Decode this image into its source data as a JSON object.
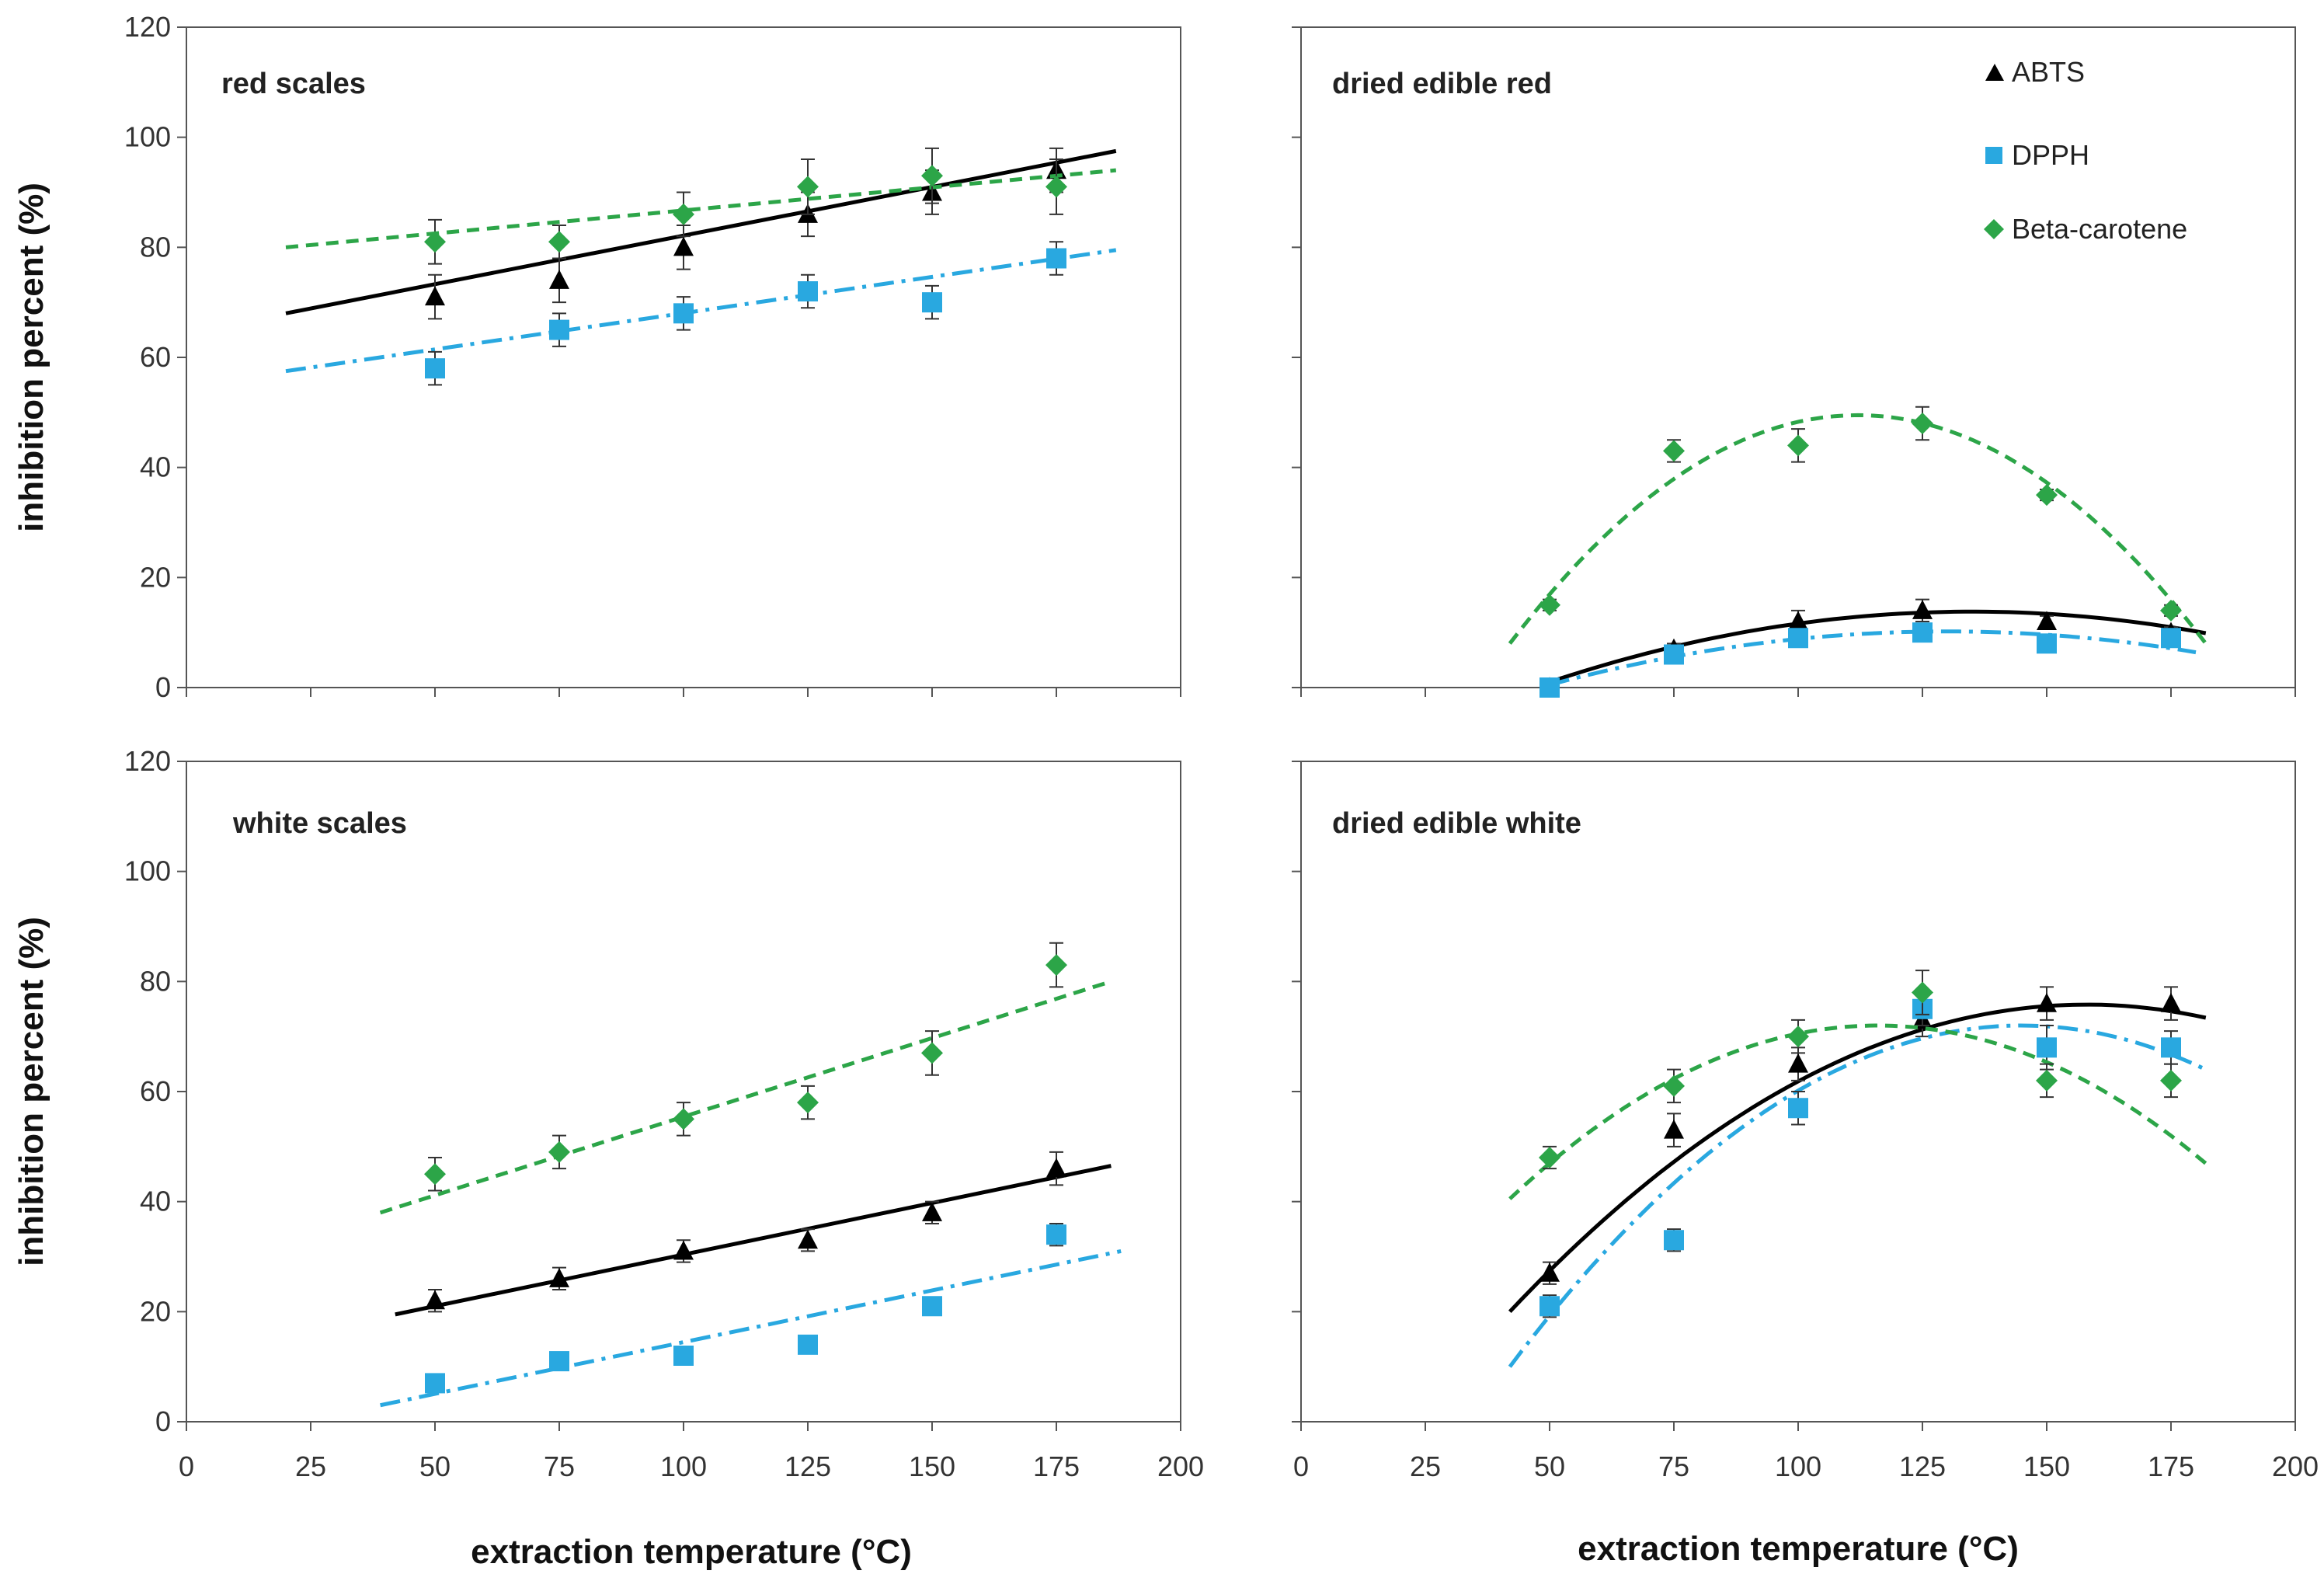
{
  "figure": {
    "ylabel": "inhibition percent (%)",
    "xlabel": "extraction temperature (°C)"
  },
  "legend": {
    "placement": "top-right of upper-right panel",
    "entries": [
      {
        "label": "ABTS",
        "marker": "triangle",
        "color": "#000000",
        "line": "solid"
      },
      {
        "label": "DPPH",
        "marker": "square",
        "color": "#29a8e0",
        "line": "dash-dot"
      },
      {
        "label": "Beta-carotene",
        "marker": "diamond",
        "color": "#2ca548",
        "line": "dashed"
      }
    ]
  },
  "chart_data": [
    {
      "type": "scatter",
      "title": "red scales",
      "xlim": [
        0,
        200
      ],
      "ylim": [
        0,
        120
      ],
      "xticks": [
        0,
        25,
        50,
        75,
        100,
        125,
        150,
        175,
        200
      ],
      "yticks": [
        0,
        20,
        40,
        60,
        80,
        100,
        120
      ],
      "show_y_labels": true,
      "show_x_labels": false,
      "series": [
        {
          "name": "ABTS",
          "x": [
            50,
            75,
            100,
            125,
            150,
            175
          ],
          "y": [
            71,
            74,
            80,
            86,
            90,
            94
          ],
          "err": [
            4,
            4,
            4,
            4,
            4,
            4
          ],
          "fit": {
            "x": [
              20,
              187
            ],
            "y": [
              68,
              97.5
            ],
            "kind": "linear"
          }
        },
        {
          "name": "DPPH",
          "x": [
            50,
            75,
            100,
            125,
            150,
            175
          ],
          "y": [
            58,
            65,
            68,
            72,
            70,
            78
          ],
          "err": [
            3,
            3,
            3,
            3,
            3,
            3
          ],
          "fit": {
            "x": [
              20,
              187
            ],
            "y": [
              57.5,
              79.5
            ],
            "kind": "linear"
          }
        },
        {
          "name": "Beta-carotene",
          "x": [
            50,
            75,
            100,
            125,
            150,
            175
          ],
          "y": [
            81,
            81,
            86,
            91,
            93,
            91
          ],
          "err": [
            4,
            3,
            4,
            5,
            5,
            5
          ],
          "fit": {
            "x": [
              20,
              187
            ],
            "y": [
              80,
              94
            ],
            "kind": "linear"
          }
        }
      ]
    },
    {
      "type": "scatter",
      "title": "dried edible red",
      "xlim": [
        0,
        200
      ],
      "ylim": [
        0,
        120
      ],
      "xticks": [
        0,
        25,
        50,
        75,
        100,
        125,
        150,
        175,
        200
      ],
      "yticks": [
        0,
        20,
        40,
        60,
        80,
        100,
        120
      ],
      "show_y_labels": false,
      "show_x_labels": false,
      "series": [
        {
          "name": "ABTS",
          "x": [
            50,
            75,
            100,
            125,
            150,
            175
          ],
          "y": [
            0,
            7,
            12,
            14,
            12,
            10
          ],
          "err": [
            0,
            1,
            2,
            2,
            1,
            1
          ],
          "fit": {
            "x": [
              50,
              182
            ],
            "y": [
              1,
              10.6
            ],
            "kind": "quadratic",
            "vertex_x": 135,
            "vertex_y": 13.8
          }
        },
        {
          "name": "DPPH",
          "x": [
            50,
            75,
            100,
            125,
            150,
            175
          ],
          "y": [
            0,
            6,
            9,
            10,
            8,
            9
          ],
          "err": [
            0,
            1,
            1,
            1,
            1,
            1
          ],
          "fit": {
            "x": [
              50,
              180
            ],
            "y": [
              0.5,
              8.5
            ],
            "kind": "quadratic",
            "vertex_x": 130,
            "vertex_y": 10.2
          }
        },
        {
          "name": "Beta-carotene",
          "x": [
            50,
            75,
            100,
            125,
            150,
            175
          ],
          "y": [
            15,
            43,
            44,
            48,
            35,
            14
          ],
          "err": [
            1,
            2,
            3,
            3,
            1,
            1
          ],
          "fit": {
            "x": [
              42,
              182
            ],
            "y": [
              8,
              7.5
            ],
            "kind": "quadratic",
            "vertex_x": 112,
            "vertex_y": 49.5
          }
        }
      ]
    },
    {
      "type": "scatter",
      "title": "white scales",
      "xlim": [
        0,
        200
      ],
      "ylim": [
        0,
        120
      ],
      "xticks": [
        0,
        25,
        50,
        75,
        100,
        125,
        150,
        175,
        200
      ],
      "yticks": [
        0,
        20,
        40,
        60,
        80,
        100,
        120
      ],
      "show_y_labels": true,
      "show_x_labels": true,
      "series": [
        {
          "name": "ABTS",
          "x": [
            50,
            75,
            100,
            125,
            150,
            175
          ],
          "y": [
            22,
            26,
            31,
            33,
            38,
            46
          ],
          "err": [
            2,
            2,
            2,
            2,
            2,
            3
          ],
          "fit": {
            "x": [
              42,
              186
            ],
            "y": [
              19.5,
              46.5
            ],
            "kind": "linear"
          }
        },
        {
          "name": "DPPH",
          "x": [
            50,
            75,
            100,
            125,
            150,
            175
          ],
          "y": [
            7,
            11,
            12,
            14,
            21,
            34
          ],
          "err": [
            1,
            1,
            1,
            1,
            1,
            2
          ],
          "fit": {
            "x": [
              39,
              188
            ],
            "y": [
              3,
              31
            ],
            "kind": "linear"
          }
        },
        {
          "name": "Beta-carotene",
          "x": [
            50,
            75,
            100,
            125,
            150,
            175
          ],
          "y": [
            45,
            49,
            55,
            58,
            67,
            83
          ],
          "err": [
            3,
            3,
            3,
            3,
            4,
            4
          ],
          "fit": {
            "x": [
              39,
              186
            ],
            "y": [
              38,
              80
            ],
            "kind": "linear"
          }
        }
      ]
    },
    {
      "type": "scatter",
      "title": "dried edible white",
      "xlim": [
        0,
        200
      ],
      "ylim": [
        0,
        120
      ],
      "xticks": [
        0,
        25,
        50,
        75,
        100,
        125,
        150,
        175,
        200
      ],
      "yticks": [
        0,
        20,
        40,
        60,
        80,
        100,
        120
      ],
      "show_y_labels": false,
      "show_x_labels": true,
      "series": [
        {
          "name": "ABTS",
          "x": [
            50,
            75,
            100,
            125,
            150,
            175
          ],
          "y": [
            27,
            53,
            65,
            73,
            76,
            76
          ],
          "err": [
            2,
            3,
            3,
            3,
            3,
            3
          ],
          "fit": {
            "x": [
              42,
              182
            ],
            "y": [
              20,
              75.5
            ],
            "kind": "quadratic",
            "vertex_x": 158,
            "vertex_y": 75.8
          }
        },
        {
          "name": "DPPH",
          "x": [
            50,
            75,
            100,
            125,
            150,
            175
          ],
          "y": [
            21,
            33,
            57,
            75,
            68,
            68
          ],
          "err": [
            2,
            2,
            3,
            3,
            4,
            3
          ],
          "fit": {
            "x": [
              42,
              182
            ],
            "y": [
              10,
              65.5
            ],
            "kind": "quadratic",
            "vertex_x": 145,
            "vertex_y": 72
          }
        },
        {
          "name": "Beta-carotene",
          "x": [
            50,
            75,
            100,
            125,
            150,
            175
          ],
          "y": [
            48,
            61,
            70,
            78,
            62,
            62
          ],
          "err": [
            2,
            3,
            3,
            4,
            3,
            3
          ],
          "fit": {
            "x": [
              42,
              182
            ],
            "y": [
              40.5,
              58.5
            ],
            "kind": "quadratic",
            "vertex_x": 116,
            "vertex_y": 72
          }
        }
      ]
    }
  ]
}
